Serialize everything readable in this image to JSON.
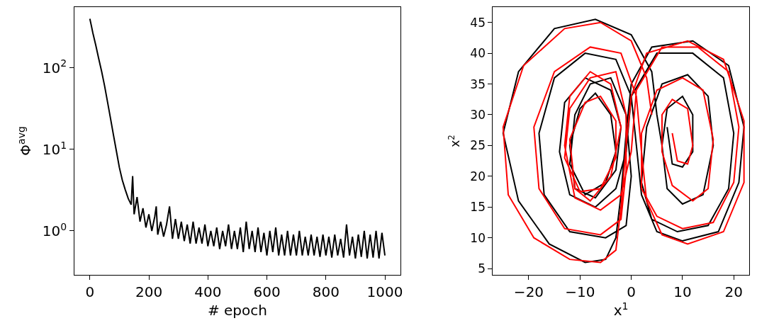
{
  "chart_data": [
    {
      "type": "line",
      "xlabel": "# epoch",
      "ylabel": "Φ$^{avg}$",
      "log": "y",
      "xlim": [
        -52,
        1052
      ],
      "xticks": [
        0,
        200,
        400,
        600,
        800,
        1000
      ],
      "ylim": [
        0.29,
        557
      ],
      "yticks": [
        {
          "value": 1,
          "label": "10$^{0}$"
        },
        {
          "value": 10,
          "label": "10$^{1}$"
        },
        {
          "value": 100,
          "label": "10$^{2}$"
        }
      ],
      "series": [
        {
          "color": "#000000",
          "x": [
            0,
            5,
            10,
            20,
            30,
            40,
            50,
            60,
            70,
            80,
            90,
            100,
            110,
            120,
            130,
            140,
            145,
            150,
            160,
            170,
            180,
            190,
            200,
            210,
            220,
            225,
            230,
            240,
            250,
            260,
            270,
            280,
            290,
            300,
            310,
            320,
            330,
            340,
            350,
            360,
            370,
            380,
            390,
            400,
            410,
            420,
            430,
            440,
            450,
            460,
            470,
            480,
            490,
            500,
            510,
            520,
            530,
            540,
            550,
            560,
            570,
            580,
            590,
            600,
            610,
            620,
            630,
            640,
            650,
            660,
            670,
            680,
            690,
            700,
            710,
            720,
            730,
            740,
            750,
            760,
            770,
            780,
            790,
            800,
            810,
            820,
            830,
            840,
            850,
            860,
            870,
            880,
            890,
            900,
            910,
            920,
            930,
            940,
            950,
            960,
            970,
            980,
            990,
            1000
          ],
          "values": [
            400,
            330,
            270,
            190,
            130,
            90,
            60,
            38,
            24,
            15,
            9.5,
            6,
            4.2,
            3.2,
            2.5,
            2.1,
            4.7,
            1.6,
            2.6,
            1.3,
            1.9,
            1.1,
            1.6,
            1.0,
            1.5,
            2.0,
            0.9,
            1.3,
            0.85,
            1.2,
            2.0,
            0.8,
            1.4,
            0.8,
            1.3,
            0.75,
            1.2,
            0.7,
            1.3,
            0.7,
            1.1,
            0.7,
            1.2,
            0.65,
            1.0,
            0.65,
            1.1,
            0.6,
            1.0,
            0.65,
            1.2,
            0.6,
            1.0,
            0.6,
            1.1,
            0.55,
            1.3,
            0.6,
            1.0,
            0.55,
            1.1,
            0.55,
            0.95,
            0.5,
            1.0,
            0.55,
            1.1,
            0.5,
            0.9,
            0.5,
            1.0,
            0.5,
            0.9,
            0.5,
            1.0,
            0.5,
            0.85,
            0.5,
            0.9,
            0.5,
            0.85,
            0.48,
            0.9,
            0.5,
            0.85,
            0.47,
            0.9,
            0.5,
            0.8,
            0.47,
            1.2,
            0.5,
            0.85,
            0.46,
            0.9,
            0.48,
            1.0,
            0.46,
            0.9,
            0.47,
            1.0,
            0.46,
            0.95,
            0.5
          ]
        }
      ]
    },
    {
      "type": "line",
      "xlabel": "x$^{1}$",
      "ylabel": "x$^{2}$",
      "xlim": [
        -27,
        23
      ],
      "xticks": [
        {
          "value": -20,
          "label": "−20"
        },
        {
          "value": -10,
          "label": "−10"
        },
        0,
        10,
        20
      ],
      "ylim": [
        4,
        47.5
      ],
      "yticks": [
        5,
        10,
        15,
        20,
        25,
        30,
        35,
        40,
        45
      ],
      "series": [
        {
          "color": "#000000",
          "x": [
            7,
            8,
            10,
            12,
            12,
            10,
            7,
            6,
            7,
            10,
            14,
            16,
            15,
            11,
            6,
            3,
            2,
            4,
            9,
            15,
            19,
            20,
            18,
            12,
            5,
            0,
            -1,
            -3,
            -7,
            -12,
            -14,
            -13,
            -9,
            -4,
            -2,
            -3,
            -7,
            -11,
            -12,
            -10,
            -7,
            -4,
            -3,
            -5,
            -9,
            -12,
            -11,
            -8,
            -4,
            -1,
            0,
            -1,
            -5,
            -12,
            -17,
            -18,
            -15,
            -9,
            -3,
            0,
            1,
            2,
            5,
            10,
            17,
            21,
            22,
            19,
            12,
            4,
            0,
            -1,
            -2,
            -3,
            -5,
            -9,
            -16,
            -22,
            -25,
            -22,
            -15,
            -7,
            0,
            4,
            5,
            6
          ],
          "values": [
            28,
            22,
            21.5,
            24,
            30,
            33,
            31,
            25,
            18,
            15.5,
            17,
            25,
            33,
            36.5,
            35,
            28,
            19,
            13,
            11,
            12,
            18,
            27,
            36,
            40,
            40,
            33,
            24,
            18,
            15,
            17,
            24,
            32,
            36,
            34,
            28,
            21,
            16.5,
            18,
            25,
            31,
            33.5,
            30,
            24,
            19,
            17,
            22,
            30,
            35,
            36,
            30,
            20,
            12,
            10,
            11,
            17,
            27,
            36,
            40,
            39,
            33,
            25,
            17,
            11,
            9.5,
            11,
            19,
            28,
            38,
            42,
            41,
            35,
            27,
            17,
            10,
            6.5,
            6,
            9,
            16,
            27,
            37,
            44,
            45.5,
            43,
            37,
            30,
            25
          ]
        },
        {
          "color": "#ff0000",
          "x": [
            8,
            9,
            11,
            12,
            11,
            8,
            6,
            6,
            8,
            12,
            15,
            16,
            14,
            10,
            5,
            2,
            2,
            5,
            10,
            16,
            20,
            21,
            19,
            13,
            6,
            1,
            0,
            -2,
            -6,
            -11,
            -13,
            -12,
            -8,
            -4,
            -2,
            -4,
            -8,
            -11,
            -12,
            -9,
            -6,
            -3,
            -3,
            -6,
            -10,
            -13,
            -12,
            -8,
            -3,
            -1,
            -1,
            -2,
            -6,
            -13,
            -18,
            -19,
            -15,
            -8,
            -2,
            1,
            2,
            3,
            6,
            11,
            18,
            22,
            22,
            18,
            11,
            3,
            0,
            -1,
            -2,
            -3,
            -6,
            -12,
            -19,
            -24,
            -25,
            -21,
            -13,
            -6,
            0,
            3,
            4
          ],
          "values": [
            27,
            22.5,
            22,
            25,
            31,
            32.5,
            30,
            24,
            18.5,
            16,
            18,
            26,
            34,
            36,
            34,
            27,
            18,
            13.5,
            11.5,
            12.5,
            19,
            28,
            37,
            41,
            41,
            34,
            24,
            17,
            14.5,
            16.5,
            25,
            33,
            37,
            35,
            28,
            20,
            16,
            18,
            26,
            32,
            33,
            29,
            23,
            18,
            17.5,
            23,
            31,
            36,
            37,
            30,
            21,
            13,
            10.5,
            11.5,
            18,
            28,
            37,
            41,
            40,
            33,
            24,
            16,
            10.5,
            9,
            11,
            19,
            29,
            39,
            42,
            40,
            33,
            25,
            15,
            8,
            6,
            6.5,
            10,
            17,
            28,
            38,
            44,
            45,
            42,
            36,
            30
          ]
        }
      ]
    }
  ]
}
